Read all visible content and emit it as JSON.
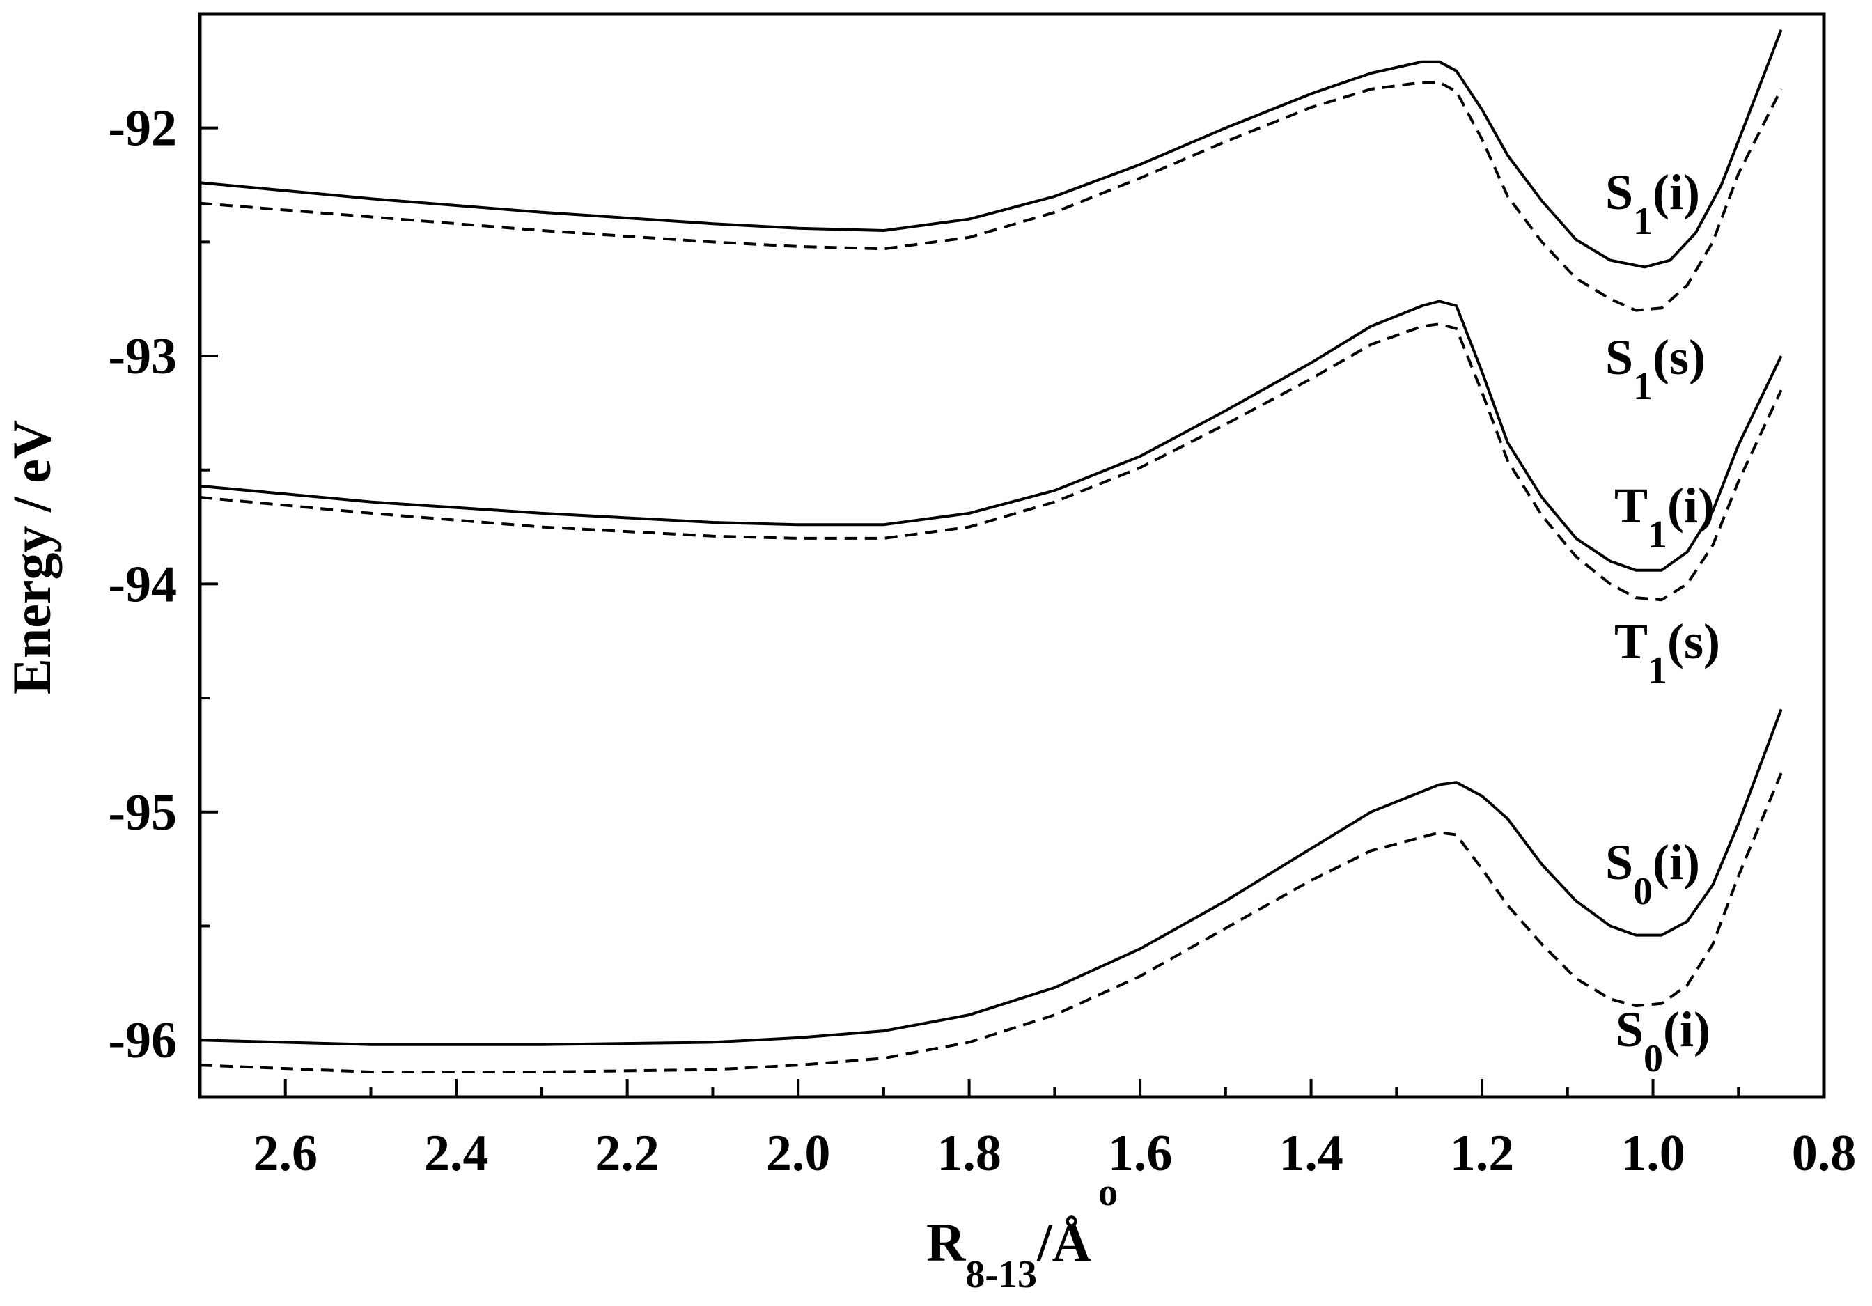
{
  "chart_data": {
    "type": "line",
    "xlabel": {
      "main": "R",
      "sub": "8-13",
      "tail": "/Å",
      "accent": "o"
    },
    "ylabel": "Energy / eV",
    "xlim": [
      2.7,
      0.8
    ],
    "ylim": [
      -96.25,
      -91.5
    ],
    "x_reversed": true,
    "grid": false,
    "legend": "none",
    "x_ticks": [
      {
        "value": 2.6,
        "label": "2.6"
      },
      {
        "value": 2.4,
        "label": "2.4"
      },
      {
        "value": 2.2,
        "label": "2.2"
      },
      {
        "value": 2.0,
        "label": "2.0"
      },
      {
        "value": 1.8,
        "label": "1.8"
      },
      {
        "value": 1.6,
        "label": "1.6"
      },
      {
        "value": 1.4,
        "label": "1.4"
      },
      {
        "value": 1.2,
        "label": "1.2"
      },
      {
        "value": 1.0,
        "label": "1.0"
      },
      {
        "value": 0.8,
        "label": "0.8"
      }
    ],
    "y_ticks": [
      {
        "value": -92,
        "label": "-92"
      },
      {
        "value": -93,
        "label": "-93"
      },
      {
        "value": -94,
        "label": "-94"
      },
      {
        "value": -95,
        "label": "-95"
      },
      {
        "value": -96,
        "label": "-96"
      }
    ],
    "series": [
      {
        "label_main": "S",
        "label_sub": "1",
        "label_tail": "(i)",
        "style": "solid",
        "points": [
          [
            2.7,
            -92.24
          ],
          [
            2.5,
            -92.31
          ],
          [
            2.3,
            -92.37
          ],
          [
            2.1,
            -92.42
          ],
          [
            2.0,
            -92.44
          ],
          [
            1.9,
            -92.45
          ],
          [
            1.8,
            -92.4
          ],
          [
            1.7,
            -92.3
          ],
          [
            1.6,
            -92.16
          ],
          [
            1.5,
            -92.0
          ],
          [
            1.4,
            -91.85
          ],
          [
            1.33,
            -91.76
          ],
          [
            1.27,
            -91.71
          ],
          [
            1.25,
            -91.71
          ],
          [
            1.23,
            -91.75
          ],
          [
            1.2,
            -91.92
          ],
          [
            1.17,
            -92.12
          ],
          [
            1.13,
            -92.32
          ],
          [
            1.09,
            -92.49
          ],
          [
            1.05,
            -92.58
          ],
          [
            1.01,
            -92.61
          ],
          [
            0.98,
            -92.58
          ],
          [
            0.95,
            -92.46
          ],
          [
            0.92,
            -92.25
          ],
          [
            0.89,
            -91.96
          ],
          [
            0.85,
            -91.57
          ]
        ]
      },
      {
        "label_main": "S",
        "label_sub": "1",
        "label_tail": "(s)",
        "style": "dashed",
        "points": [
          [
            2.7,
            -92.33
          ],
          [
            2.5,
            -92.39
          ],
          [
            2.3,
            -92.45
          ],
          [
            2.1,
            -92.5
          ],
          [
            2.0,
            -92.52
          ],
          [
            1.9,
            -92.53
          ],
          [
            1.8,
            -92.48
          ],
          [
            1.7,
            -92.37
          ],
          [
            1.6,
            -92.22
          ],
          [
            1.5,
            -92.06
          ],
          [
            1.4,
            -91.91
          ],
          [
            1.33,
            -91.83
          ],
          [
            1.27,
            -91.8
          ],
          [
            1.25,
            -91.8
          ],
          [
            1.23,
            -91.84
          ],
          [
            1.2,
            -92.05
          ],
          [
            1.17,
            -92.3
          ],
          [
            1.13,
            -92.5
          ],
          [
            1.09,
            -92.66
          ],
          [
            1.05,
            -92.75
          ],
          [
            1.02,
            -92.8
          ],
          [
            0.99,
            -92.79
          ],
          [
            0.96,
            -92.69
          ],
          [
            0.93,
            -92.5
          ],
          [
            0.9,
            -92.2
          ],
          [
            0.85,
            -91.83
          ]
        ]
      },
      {
        "label_main": "T",
        "label_sub": "1",
        "label_tail": "(i)",
        "style": "solid",
        "points": [
          [
            2.7,
            -93.57
          ],
          [
            2.5,
            -93.64
          ],
          [
            2.3,
            -93.69
          ],
          [
            2.1,
            -93.73
          ],
          [
            2.0,
            -93.74
          ],
          [
            1.9,
            -93.74
          ],
          [
            1.8,
            -93.69
          ],
          [
            1.7,
            -93.59
          ],
          [
            1.6,
            -93.44
          ],
          [
            1.5,
            -93.24
          ],
          [
            1.4,
            -93.03
          ],
          [
            1.33,
            -92.87
          ],
          [
            1.27,
            -92.78
          ],
          [
            1.25,
            -92.76
          ],
          [
            1.23,
            -92.78
          ],
          [
            1.2,
            -93.07
          ],
          [
            1.17,
            -93.38
          ],
          [
            1.13,
            -93.62
          ],
          [
            1.09,
            -93.8
          ],
          [
            1.05,
            -93.9
          ],
          [
            1.02,
            -93.94
          ],
          [
            0.99,
            -93.94
          ],
          [
            0.96,
            -93.86
          ],
          [
            0.93,
            -93.68
          ],
          [
            0.9,
            -93.39
          ],
          [
            0.85,
            -93.0
          ]
        ]
      },
      {
        "label_main": "T",
        "label_sub": "1",
        "label_tail": "(s)",
        "style": "dashed",
        "points": [
          [
            2.7,
            -93.62
          ],
          [
            2.5,
            -93.69
          ],
          [
            2.3,
            -93.75
          ],
          [
            2.1,
            -93.79
          ],
          [
            2.0,
            -93.8
          ],
          [
            1.9,
            -93.8
          ],
          [
            1.8,
            -93.75
          ],
          [
            1.7,
            -93.64
          ],
          [
            1.6,
            -93.49
          ],
          [
            1.5,
            -93.3
          ],
          [
            1.4,
            -93.1
          ],
          [
            1.33,
            -92.95
          ],
          [
            1.27,
            -92.87
          ],
          [
            1.25,
            -92.86
          ],
          [
            1.23,
            -92.88
          ],
          [
            1.2,
            -93.16
          ],
          [
            1.17,
            -93.46
          ],
          [
            1.13,
            -93.7
          ],
          [
            1.09,
            -93.88
          ],
          [
            1.05,
            -94.0
          ],
          [
            1.02,
            -94.06
          ],
          [
            0.99,
            -94.07
          ],
          [
            0.96,
            -94.0
          ],
          [
            0.93,
            -93.83
          ],
          [
            0.9,
            -93.55
          ],
          [
            0.85,
            -93.15
          ]
        ]
      },
      {
        "label_main": "S",
        "label_sub": "0",
        "label_tail": "(i)",
        "style": "solid",
        "points": [
          [
            2.7,
            -96.0
          ],
          [
            2.5,
            -96.02
          ],
          [
            2.3,
            -96.02
          ],
          [
            2.1,
            -96.01
          ],
          [
            2.0,
            -95.99
          ],
          [
            1.9,
            -95.96
          ],
          [
            1.8,
            -95.89
          ],
          [
            1.7,
            -95.77
          ],
          [
            1.6,
            -95.6
          ],
          [
            1.5,
            -95.39
          ],
          [
            1.4,
            -95.16
          ],
          [
            1.33,
            -95.0
          ],
          [
            1.27,
            -94.91
          ],
          [
            1.25,
            -94.88
          ],
          [
            1.23,
            -94.87
          ],
          [
            1.2,
            -94.93
          ],
          [
            1.17,
            -95.03
          ],
          [
            1.13,
            -95.23
          ],
          [
            1.09,
            -95.39
          ],
          [
            1.05,
            -95.5
          ],
          [
            1.02,
            -95.54
          ],
          [
            0.99,
            -95.54
          ],
          [
            0.96,
            -95.48
          ],
          [
            0.93,
            -95.32
          ],
          [
            0.9,
            -95.05
          ],
          [
            0.85,
            -94.55
          ]
        ]
      },
      {
        "label_main": "S",
        "label_sub": "0",
        "label_tail": "(i)",
        "style": "dashed",
        "points": [
          [
            2.7,
            -96.11
          ],
          [
            2.5,
            -96.14
          ],
          [
            2.3,
            -96.14
          ],
          [
            2.1,
            -96.13
          ],
          [
            2.0,
            -96.11
          ],
          [
            1.9,
            -96.08
          ],
          [
            1.8,
            -96.01
          ],
          [
            1.7,
            -95.89
          ],
          [
            1.6,
            -95.72
          ],
          [
            1.5,
            -95.51
          ],
          [
            1.4,
            -95.3
          ],
          [
            1.33,
            -95.17
          ],
          [
            1.27,
            -95.11
          ],
          [
            1.25,
            -95.09
          ],
          [
            1.23,
            -95.1
          ],
          [
            1.2,
            -95.25
          ],
          [
            1.17,
            -95.41
          ],
          [
            1.13,
            -95.58
          ],
          [
            1.09,
            -95.73
          ],
          [
            1.05,
            -95.82
          ],
          [
            1.02,
            -95.85
          ],
          [
            0.99,
            -95.84
          ],
          [
            0.96,
            -95.76
          ],
          [
            0.93,
            -95.58
          ],
          [
            0.9,
            -95.28
          ],
          [
            0.85,
            -94.83
          ]
        ]
      }
    ]
  }
}
